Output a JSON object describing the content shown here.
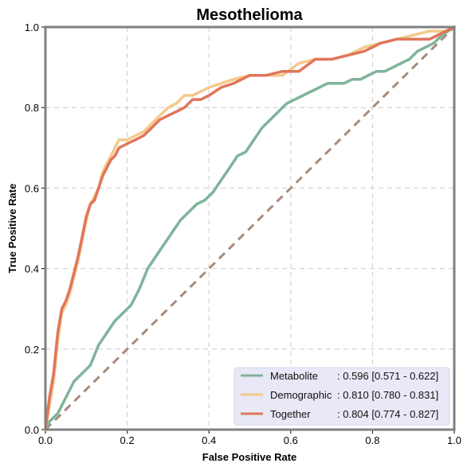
{
  "chart_data": {
    "type": "line",
    "title": "Mesothelioma",
    "xlabel": "False Positive Rate",
    "ylabel": "True Positive Rate",
    "xlim": [
      0,
      1
    ],
    "ylim": [
      0,
      1
    ],
    "xticks": [
      "0.0",
      "0.2",
      "0.4",
      "0.6",
      "0.8",
      "1.0"
    ],
    "yticks": [
      "0.0",
      "0.2",
      "0.4",
      "0.6",
      "0.8",
      "1.0"
    ],
    "grid": true,
    "legend_position": "bottom-right",
    "diagonal": {
      "color": "#a78b7b",
      "x": [
        0,
        1
      ],
      "y": [
        0,
        1
      ]
    },
    "series": [
      {
        "name": "Metabolite",
        "auc_text": ": 0.596 [0.571 - 0.622]",
        "color": "#7fb49a",
        "x": [
          0,
          0.01,
          0.02,
          0.03,
          0.05,
          0.07,
          0.09,
          0.11,
          0.13,
          0.15,
          0.17,
          0.19,
          0.21,
          0.23,
          0.25,
          0.27,
          0.29,
          0.31,
          0.33,
          0.35,
          0.37,
          0.39,
          0.41,
          0.43,
          0.45,
          0.47,
          0.49,
          0.51,
          0.53,
          0.55,
          0.57,
          0.59,
          0.61,
          0.63,
          0.65,
          0.67,
          0.69,
          0.71,
          0.73,
          0.75,
          0.77,
          0.79,
          0.81,
          0.83,
          0.85,
          0.87,
          0.89,
          0.91,
          0.93,
          0.95,
          0.97,
          1.0
        ],
        "y": [
          0,
          0.02,
          0.03,
          0.04,
          0.08,
          0.12,
          0.14,
          0.16,
          0.21,
          0.24,
          0.27,
          0.29,
          0.31,
          0.35,
          0.4,
          0.43,
          0.46,
          0.49,
          0.52,
          0.54,
          0.56,
          0.57,
          0.59,
          0.62,
          0.65,
          0.68,
          0.69,
          0.72,
          0.75,
          0.77,
          0.79,
          0.81,
          0.82,
          0.83,
          0.84,
          0.85,
          0.86,
          0.86,
          0.86,
          0.87,
          0.87,
          0.88,
          0.89,
          0.89,
          0.9,
          0.91,
          0.92,
          0.94,
          0.95,
          0.96,
          0.98,
          1.0
        ]
      },
      {
        "name": "Demographic",
        "auc_text": ": 0.810 [0.780 - 0.831]",
        "color": "#f5c98a",
        "x": [
          0,
          0.01,
          0.02,
          0.03,
          0.04,
          0.05,
          0.06,
          0.07,
          0.08,
          0.09,
          0.1,
          0.11,
          0.12,
          0.13,
          0.14,
          0.15,
          0.16,
          0.17,
          0.18,
          0.2,
          0.22,
          0.24,
          0.26,
          0.28,
          0.3,
          0.32,
          0.34,
          0.36,
          0.38,
          0.4,
          0.43,
          0.46,
          0.5,
          0.54,
          0.58,
          0.62,
          0.66,
          0.7,
          0.74,
          0.78,
          0.82,
          0.86,
          0.9,
          0.94,
          0.98,
          1.0
        ],
        "y": [
          0,
          0.06,
          0.12,
          0.22,
          0.29,
          0.31,
          0.34,
          0.38,
          0.42,
          0.47,
          0.52,
          0.56,
          0.58,
          0.6,
          0.64,
          0.66,
          0.68,
          0.7,
          0.72,
          0.72,
          0.73,
          0.74,
          0.76,
          0.78,
          0.8,
          0.81,
          0.83,
          0.83,
          0.84,
          0.85,
          0.86,
          0.87,
          0.88,
          0.88,
          0.88,
          0.91,
          0.92,
          0.92,
          0.93,
          0.95,
          0.96,
          0.97,
          0.98,
          0.99,
          0.99,
          1.0
        ]
      },
      {
        "name": "Together",
        "auc_text": ": 0.804 [0.774 - 0.827]",
        "color": "#e0765a",
        "x": [
          0,
          0.01,
          0.02,
          0.03,
          0.04,
          0.05,
          0.06,
          0.07,
          0.08,
          0.09,
          0.1,
          0.11,
          0.12,
          0.13,
          0.14,
          0.15,
          0.16,
          0.17,
          0.18,
          0.2,
          0.22,
          0.24,
          0.26,
          0.28,
          0.3,
          0.32,
          0.34,
          0.36,
          0.38,
          0.4,
          0.43,
          0.46,
          0.5,
          0.54,
          0.58,
          0.62,
          0.66,
          0.7,
          0.74,
          0.78,
          0.82,
          0.86,
          0.9,
          0.94,
          0.98,
          1.0
        ],
        "y": [
          0,
          0.08,
          0.14,
          0.24,
          0.3,
          0.32,
          0.35,
          0.39,
          0.43,
          0.48,
          0.53,
          0.56,
          0.57,
          0.6,
          0.63,
          0.65,
          0.67,
          0.68,
          0.7,
          0.71,
          0.72,
          0.73,
          0.75,
          0.77,
          0.78,
          0.79,
          0.8,
          0.82,
          0.82,
          0.83,
          0.85,
          0.86,
          0.88,
          0.88,
          0.89,
          0.89,
          0.92,
          0.92,
          0.93,
          0.94,
          0.96,
          0.97,
          0.97,
          0.97,
          0.99,
          1.0
        ]
      }
    ]
  }
}
